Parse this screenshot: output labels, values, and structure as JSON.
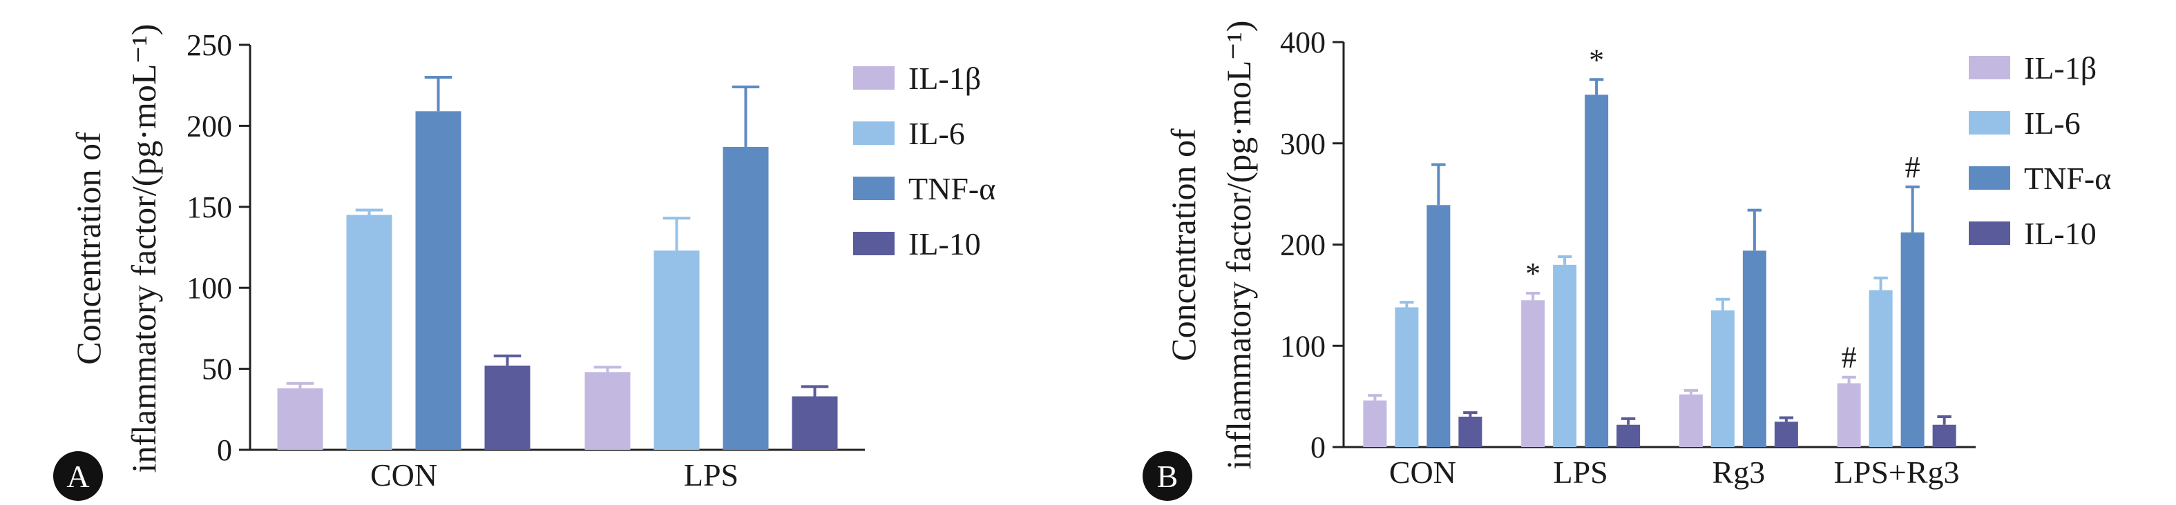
{
  "chart_data": [
    {
      "panel_label": "A",
      "type": "bar",
      "ylabel_lines": [
        "Concentration of",
        "inflammatory factor/(pg·moL⁻¹)"
      ],
      "categories": [
        "CON",
        "LPS"
      ],
      "ylim": [
        0,
        250
      ],
      "yticks": [
        0,
        50,
        100,
        150,
        200,
        250
      ],
      "legend_position": "top-right",
      "series": [
        {
          "name": "IL-1β",
          "color": "#c3b9e0",
          "values": [
            38,
            48
          ],
          "errors": [
            3,
            3
          ]
        },
        {
          "name": "IL-6",
          "color": "#95c1e8",
          "values": [
            145,
            123
          ],
          "errors": [
            3,
            20
          ]
        },
        {
          "name": "TNF-α",
          "color": "#5e8ac2",
          "values": [
            209,
            187
          ],
          "errors": [
            21,
            37
          ]
        },
        {
          "name": "IL-10",
          "color": "#5a5b9a",
          "values": [
            52,
            33
          ],
          "errors": [
            6,
            6
          ]
        }
      ],
      "annotations": []
    },
    {
      "panel_label": "B",
      "type": "bar",
      "ylabel_lines": [
        "Concentration of",
        "inflammatory factor/(pg·moL⁻¹)"
      ],
      "categories": [
        "CON",
        "LPS",
        "Rg3",
        "LPS+Rg3"
      ],
      "ylim": [
        0,
        400
      ],
      "yticks": [
        0,
        100,
        200,
        300,
        400
      ],
      "legend_position": "top-right",
      "series": [
        {
          "name": "IL-1β",
          "color": "#c3b9e0",
          "values": [
            46,
            145,
            52,
            63
          ],
          "errors": [
            5,
            7,
            4,
            6
          ]
        },
        {
          "name": "IL-6",
          "color": "#95c1e8",
          "values": [
            138,
            180,
            135,
            155
          ],
          "errors": [
            5,
            8,
            11,
            12
          ]
        },
        {
          "name": "TNF-α",
          "color": "#5e8ac2",
          "values": [
            239,
            348,
            194,
            212
          ],
          "errors": [
            40,
            15,
            40,
            45
          ]
        },
        {
          "name": "IL-10",
          "color": "#5a5b9a",
          "values": [
            30,
            22,
            25,
            22
          ],
          "errors": [
            4,
            6,
            4,
            8
          ]
        }
      ],
      "annotations": [
        {
          "category": "LPS",
          "series": "IL-1β",
          "text": "*"
        },
        {
          "category": "LPS",
          "series": "TNF-α",
          "text": "*"
        },
        {
          "category": "LPS+Rg3",
          "series": "IL-1β",
          "text": "#"
        },
        {
          "category": "LPS+Rg3",
          "series": "TNF-α",
          "text": "#"
        }
      ]
    }
  ]
}
